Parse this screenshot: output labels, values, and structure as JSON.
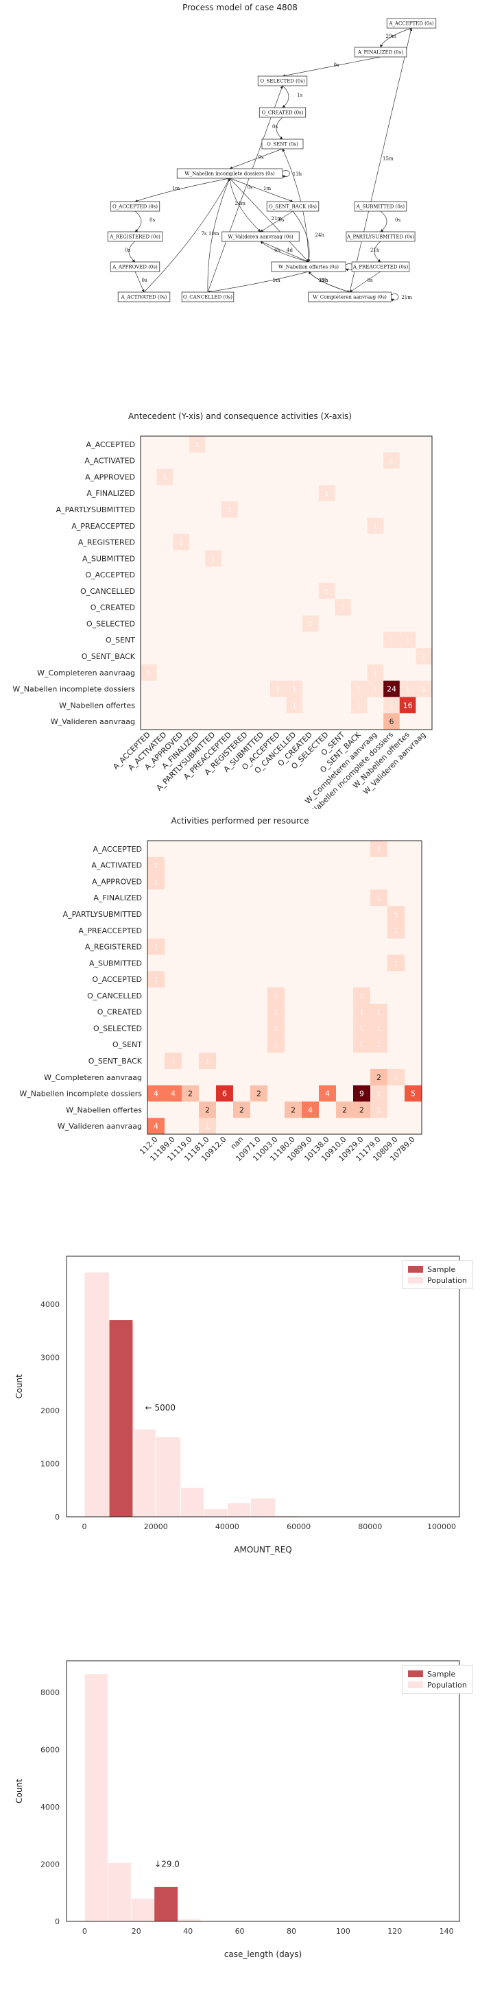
{
  "process_model": {
    "title": "Process model of case 4808",
    "nodes": [
      {
        "id": "A_ACCEPTED",
        "label": "A_ACCEPTED (0s)"
      },
      {
        "id": "A_FINALIZED",
        "label": "A_FINALIZED (0s)"
      },
      {
        "id": "O_SELECTED",
        "label": "O_SELECTED (0s)"
      },
      {
        "id": "O_CREATED",
        "label": "O_CREATED (0s)"
      },
      {
        "id": "O_SENT",
        "label": "O_SENT (0s)"
      },
      {
        "id": "W_Nab_inc",
        "label": "W_Nabellen incomplete dossiers (0s)"
      },
      {
        "id": "O_ACCEPTED",
        "label": "O_ACCEPTED (0s)"
      },
      {
        "id": "O_SENT_BACK",
        "label": "O_SENT_BACK (0s)"
      },
      {
        "id": "A_SUBMITTED",
        "label": "A_SUBMITTED (0s)"
      },
      {
        "id": "A_REGISTERED",
        "label": "A_REGISTERED (0s)"
      },
      {
        "id": "W_Valideren",
        "label": "W_Valideren aanvraag (0s)"
      },
      {
        "id": "A_PARTLYSUBMITTED",
        "label": "A_PARTLYSUBMITTED (0s)"
      },
      {
        "id": "A_APPROVED",
        "label": "A_APPROVED (0s)"
      },
      {
        "id": "W_Nab_off",
        "label": "W_Nabellen offertes (0s)"
      },
      {
        "id": "A_PREACCEPTED",
        "label": "A_PREACCEPTED (0s)"
      },
      {
        "id": "A_ACTIVATED",
        "label": "A_ACTIVATED (0s)"
      },
      {
        "id": "O_CANCELLED",
        "label": "O_CANCELLED (0s)"
      },
      {
        "id": "W_Compl",
        "label": "W_Completeren aanvraag (0s)"
      }
    ],
    "edges": [
      {
        "from": "A_ACCEPTED",
        "to": "A_FINALIZED",
        "label": "29m"
      },
      {
        "from": "A_FINALIZED",
        "to": "O_SELECTED",
        "label": "0s"
      },
      {
        "from": "O_SELECTED",
        "to": "O_CREATED",
        "label": "1s"
      },
      {
        "from": "O_CREATED",
        "to": "O_SENT",
        "label": "0s"
      },
      {
        "from": "O_SENT",
        "to": "W_Nab_inc",
        "label": "0s"
      },
      {
        "from": "W_Nab_inc",
        "to": "W_Nab_inc",
        "label": "13h"
      },
      {
        "from": "W_Nab_inc",
        "to": "O_ACCEPTED",
        "label": "1m"
      },
      {
        "from": "W_Nab_inc",
        "to": "O_SENT_BACK",
        "label": "1m"
      },
      {
        "from": "O_ACCEPTED",
        "to": "A_REGISTERED",
        "label": "0s"
      },
      {
        "from": "A_REGISTERED",
        "to": "A_APPROVED",
        "label": "0s"
      },
      {
        "from": "A_APPROVED",
        "to": "A_ACTIVATED",
        "label": "0s"
      },
      {
        "from": "A_SUBMITTED",
        "to": "A_PARTLYSUBMITTED",
        "label": "0s"
      },
      {
        "from": "A_PARTLYSUBMITTED",
        "to": "A_PREACCEPTED",
        "label": "21h"
      },
      {
        "from": "A_PREACCEPTED",
        "to": "W_Compl",
        "label": "0s"
      },
      {
        "from": "W_Compl",
        "to": "W_Compl",
        "label": "21m"
      },
      {
        "from": "W_Compl",
        "to": "W_Nab_off",
        "label": "11h"
      },
      {
        "from": "W_Compl",
        "to": "A_ACCEPTED",
        "label": "15m"
      },
      {
        "from": "W_Nab_off",
        "to": "W_Nab_off",
        "label": "20h"
      },
      {
        "from": "W_Nab_off",
        "to": "W_Valideren",
        "label": "6h"
      },
      {
        "from": "W_Valideren",
        "to": "W_Nab_off",
        "label": "4d"
      },
      {
        "from": "W_Nab_off",
        "to": "O_CANCELLED",
        "label": "5m"
      },
      {
        "from": "W_Nab_inc",
        "to": "W_Valideren",
        "label": "24m"
      },
      {
        "from": "O_SENT_BACK",
        "to": "W_Valideren",
        "label": "0s"
      },
      {
        "from": "O_SENT_BACK",
        "to": "W_Nab_off",
        "label": "24h"
      },
      {
        "from": "W_Nab_off",
        "to": "W_Compl",
        "label": "29h"
      },
      {
        "from": "W_Nab_inc",
        "to": "W_Nab_off",
        "label": "21m"
      },
      {
        "from": "A_ACTIVATED",
        "to": "W_Nab_inc",
        "label": "7s"
      },
      {
        "from": "O_CANCELLED",
        "to": "W_Nab_inc",
        "label": "10m"
      },
      {
        "from": "O_CANCELLED",
        "to": "O_SELECTED",
        "label": "0s"
      },
      {
        "from": "W_Nab_off",
        "to": "O_SENT",
        "label": "0s"
      }
    ]
  },
  "chart_data": [
    {
      "type": "heatmap",
      "title": "Antecedent (Y-xis) and consequence activities (X-axis)",
      "rows": [
        "A_ACCEPTED",
        "A_ACTIVATED",
        "A_APPROVED",
        "A_FINALIZED",
        "A_PARTLYSUBMITTED",
        "A_PREACCEPTED",
        "A_REGISTERED",
        "A_SUBMITTED",
        "O_ACCEPTED",
        "O_CANCELLED",
        "O_CREATED",
        "O_SELECTED",
        "O_SENT",
        "O_SENT_BACK",
        "W_Completeren aanvraag",
        "W_Nabellen incomplete dossiers",
        "W_Nabellen offertes",
        "W_Valideren aanvraag"
      ],
      "cols": [
        "A_ACCEPTED",
        "A_ACTIVATED",
        "A_APPROVED",
        "A_FINALIZED",
        "A_PARTLYSUBMITTED",
        "A_PREACCEPTED",
        "A_REGISTERED",
        "A_SUBMITTED",
        "O_ACCEPTED",
        "O_CANCELLED",
        "O_CREATED",
        "O_SELECTED",
        "O_SENT",
        "O_SENT_BACK",
        "W_Completeren aanvraag",
        "W_Nabellen incomplete dossiers",
        "W_Nabellen offertes",
        "W_Valideren aanvraag"
      ],
      "cells": [
        {
          "r": 0,
          "c": 3,
          "v": 1
        },
        {
          "r": 1,
          "c": 15,
          "v": 1
        },
        {
          "r": 2,
          "c": 1,
          "v": 1
        },
        {
          "r": 3,
          "c": 11,
          "v": 1
        },
        {
          "r": 4,
          "c": 5,
          "v": 1
        },
        {
          "r": 5,
          "c": 14,
          "v": 1
        },
        {
          "r": 6,
          "c": 2,
          "v": 1
        },
        {
          "r": 7,
          "c": 4,
          "v": 1
        },
        {
          "r": 9,
          "c": 11,
          "v": 1
        },
        {
          "r": 10,
          "c": 12,
          "v": 1
        },
        {
          "r": 11,
          "c": 10,
          "v": 2
        },
        {
          "r": 12,
          "c": 15,
          "v": 1
        },
        {
          "r": 12,
          "c": 16,
          "v": 1
        },
        {
          "r": 13,
          "c": 17,
          "v": 1
        },
        {
          "r": 14,
          "c": 0,
          "v": 1
        },
        {
          "r": 14,
          "c": 14,
          "v": 1
        },
        {
          "r": 15,
          "c": 8,
          "v": 1
        },
        {
          "r": 15,
          "c": 9,
          "v": 1
        },
        {
          "r": 15,
          "c": 13,
          "v": 1
        },
        {
          "r": 15,
          "c": 14,
          "v": 1
        },
        {
          "r": 15,
          "c": 15,
          "v": 24
        },
        {
          "r": 15,
          "c": 16,
          "v": 1
        },
        {
          "r": 15,
          "c": 17,
          "v": 1
        },
        {
          "r": 16,
          "c": 9,
          "v": 1
        },
        {
          "r": 16,
          "c": 13,
          "v": 1
        },
        {
          "r": 16,
          "c": 15,
          "v": 1
        },
        {
          "r": 16,
          "c": 16,
          "v": 16
        },
        {
          "r": 17,
          "c": 15,
          "v": 6
        }
      ],
      "vmax": 24,
      "show_label_min": 6
    },
    {
      "type": "heatmap",
      "title": "Activities performed per resource",
      "rows": [
        "A_ACCEPTED",
        "A_ACTIVATED",
        "A_APPROVED",
        "A_FINALIZED",
        "A_PARTLYSUBMITTED",
        "A_PREACCEPTED",
        "A_REGISTERED",
        "A_SUBMITTED",
        "O_ACCEPTED",
        "O_CANCELLED",
        "O_CREATED",
        "O_SELECTED",
        "O_SENT",
        "O_SENT_BACK",
        "W_Completeren aanvraag",
        "W_Nabellen incomplete dossiers",
        "W_Nabellen offertes",
        "W_Valideren aanvraag"
      ],
      "cols": [
        "112.0",
        "11189.0",
        "11119.0",
        "11181.0",
        "10912.0",
        "nan",
        "10971.0",
        "11003.0",
        "11180.0",
        "10899.0",
        "10138.0",
        "10910.0",
        "10929.0",
        "11179.0",
        "10809.0",
        "10789.0"
      ],
      "cells": [
        {
          "r": 0,
          "c": 13,
          "v": 1
        },
        {
          "r": 1,
          "c": 0,
          "v": 1
        },
        {
          "r": 2,
          "c": 0,
          "v": 1
        },
        {
          "r": 3,
          "c": 13,
          "v": 1
        },
        {
          "r": 4,
          "c": 14,
          "v": 1
        },
        {
          "r": 5,
          "c": 14,
          "v": 1
        },
        {
          "r": 6,
          "c": 0,
          "v": 1
        },
        {
          "r": 7,
          "c": 14,
          "v": 1
        },
        {
          "r": 8,
          "c": 0,
          "v": 1
        },
        {
          "r": 9,
          "c": 7,
          "v": 1
        },
        {
          "r": 9,
          "c": 12,
          "v": 1
        },
        {
          "r": 10,
          "c": 7,
          "v": 1
        },
        {
          "r": 10,
          "c": 12,
          "v": 1
        },
        {
          "r": 10,
          "c": 13,
          "v": 1
        },
        {
          "r": 11,
          "c": 7,
          "v": 1
        },
        {
          "r": 11,
          "c": 12,
          "v": 1
        },
        {
          "r": 11,
          "c": 13,
          "v": 1
        },
        {
          "r": 12,
          "c": 7,
          "v": 1
        },
        {
          "r": 12,
          "c": 12,
          "v": 1
        },
        {
          "r": 12,
          "c": 13,
          "v": 1
        },
        {
          "r": 13,
          "c": 1,
          "v": 1
        },
        {
          "r": 13,
          "c": 3,
          "v": 1
        },
        {
          "r": 14,
          "c": 13,
          "v": 2
        },
        {
          "r": 14,
          "c": 14,
          "v": 1
        },
        {
          "r": 15,
          "c": 0,
          "v": 4
        },
        {
          "r": 15,
          "c": 1,
          "v": 4
        },
        {
          "r": 15,
          "c": 2,
          "v": 2
        },
        {
          "r": 15,
          "c": 4,
          "v": 6
        },
        {
          "r": 15,
          "c": 6,
          "v": 2
        },
        {
          "r": 15,
          "c": 10,
          "v": 4
        },
        {
          "r": 15,
          "c": 12,
          "v": 9
        },
        {
          "r": 15,
          "c": 13,
          "v": 1
        },
        {
          "r": 15,
          "c": 15,
          "v": 5
        },
        {
          "r": 16,
          "c": 3,
          "v": 2
        },
        {
          "r": 16,
          "c": 5,
          "v": 2
        },
        {
          "r": 16,
          "c": 8,
          "v": 2
        },
        {
          "r": 16,
          "c": 9,
          "v": 4
        },
        {
          "r": 16,
          "c": 11,
          "v": 2
        },
        {
          "r": 16,
          "c": 12,
          "v": 2
        },
        {
          "r": 16,
          "c": 13,
          "v": 1
        },
        {
          "r": 17,
          "c": 0,
          "v": 4
        },
        {
          "r": 17,
          "c": 3,
          "v": 1
        }
      ],
      "vmax": 9,
      "show_label_min": 2
    },
    {
      "type": "bar",
      "title": "",
      "xlabel": "AMOUNT_REQ",
      "ylabel": "Count",
      "xlim": [
        -5000,
        105000
      ],
      "ylim": [
        0,
        4900
      ],
      "xticks": [
        0,
        20000,
        40000,
        60000,
        80000,
        100000
      ],
      "yticks": [
        0,
        1000,
        2000,
        3000,
        4000
      ],
      "population": [
        {
          "x0": 0,
          "x1": 7000,
          "v": 4600
        },
        {
          "x0": 7000,
          "x1": 14000,
          "v": 3650
        },
        {
          "x0": 14000,
          "x1": 20000,
          "v": 1650
        },
        {
          "x0": 20000,
          "x1": 27000,
          "v": 1500
        },
        {
          "x0": 27000,
          "x1": 33500,
          "v": 550
        },
        {
          "x0": 33500,
          "x1": 40000,
          "v": 150
        },
        {
          "x0": 40000,
          "x1": 46500,
          "v": 260
        },
        {
          "x0": 46500,
          "x1": 53500,
          "v": 350
        },
        {
          "x0": 53500,
          "x1": 60000,
          "v": 20
        },
        {
          "x0": 60000,
          "x1": 66500,
          "v": 10
        },
        {
          "x0": 66500,
          "x1": 73500,
          "v": 5
        }
      ],
      "sample": [
        {
          "x0": 7000,
          "x1": 13500,
          "v": 3700
        }
      ],
      "annotation": {
        "text": "← 5000",
        "x": 17000,
        "y": 2000
      },
      "legend": [
        "Sample",
        "Population"
      ],
      "colors": {
        "sample": "#c44e52",
        "population": "#fde4e2"
      }
    },
    {
      "type": "bar",
      "title": "",
      "xlabel": "case_length (days)",
      "ylabel": "Count",
      "xlim": [
        -7,
        145
      ],
      "ylim": [
        0,
        9100
      ],
      "xticks": [
        0,
        20,
        40,
        60,
        80,
        100,
        120,
        140
      ],
      "yticks": [
        0,
        2000,
        4000,
        6000,
        8000
      ],
      "population": [
        {
          "x0": 0,
          "x1": 9,
          "v": 8650
        },
        {
          "x0": 9,
          "x1": 18,
          "v": 2050
        },
        {
          "x0": 18,
          "x1": 27,
          "v": 800
        },
        {
          "x0": 27,
          "x1": 36,
          "v": 1050
        },
        {
          "x0": 36,
          "x1": 45,
          "v": 80
        },
        {
          "x0": 45,
          "x1": 54,
          "v": 10
        }
      ],
      "sample": [
        {
          "x0": 27,
          "x1": 36,
          "v": 1200
        }
      ],
      "annotation": {
        "text": "↓29.0",
        "x": 27,
        "y": 1900
      },
      "legend": [
        "Sample",
        "Population"
      ],
      "colors": {
        "sample": "#c44e52",
        "population": "#fde4e2"
      }
    }
  ]
}
